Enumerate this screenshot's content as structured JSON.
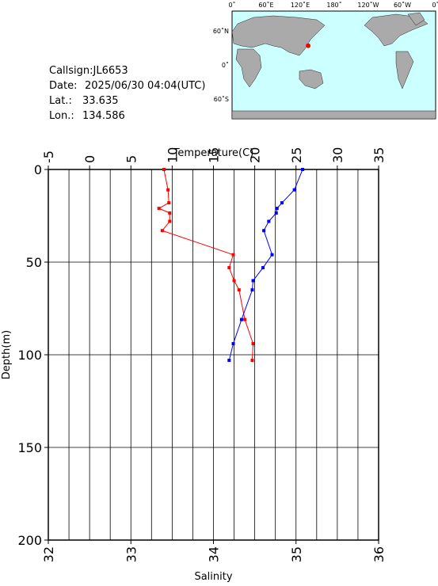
{
  "info": {
    "callsign": "Callsign:JL6653",
    "date_label": "Date:",
    "date": "2025/06/30 04:04(UTC)",
    "lat_label": "Lat.:",
    "lat": 33.635,
    "lon_label": "Lon.:",
    "lon": 134.586
  },
  "map": {
    "xlabels": [
      "0˚",
      "60˚E",
      "120˚E",
      "180˚",
      "120˚W",
      "60˚W",
      "0˚"
    ],
    "ylabels": [
      "60˚N",
      "0˚",
      "60˚S"
    ]
  },
  "chart_data": {
    "type": "line",
    "x_label": "Temperature(C)",
    "x2_label": "Salinity",
    "y_label": "Depth(m)",
    "xlim": [
      -5,
      35
    ],
    "xticks": [
      -5,
      0,
      5,
      10,
      15,
      20,
      25,
      30,
      35
    ],
    "xgrid": [
      -2.5,
      2.5,
      7.5,
      12.5,
      17.5,
      22.5,
      27.5,
      32.5
    ],
    "x2lim": [
      32,
      36
    ],
    "x2ticks": [
      32,
      33,
      34,
      35,
      36
    ],
    "ylim": [
      0,
      200
    ],
    "yticks": [
      0,
      50,
      100,
      150,
      200
    ],
    "y_inverted": true,
    "grid": true,
    "depth": [
      0,
      11,
      18,
      21,
      23.5,
      28,
      33,
      46,
      53,
      60,
      65,
      81,
      94,
      103
    ],
    "series": [
      {
        "name": "Temperature",
        "color": "#ff0000",
        "axis": "x",
        "values": [
          9.0,
          9.5,
          9.6,
          8.4,
          9.7,
          9.7,
          8.8,
          17.4,
          16.9,
          17.5,
          18.1,
          18.8,
          19.8,
          19.7
        ]
      },
      {
        "name": "Salinity",
        "color": "#0000ff",
        "axis": "x2",
        "values": [
          35.08,
          34.98,
          34.83,
          34.77,
          34.76,
          34.67,
          34.61,
          34.71,
          34.6,
          34.48,
          34.47,
          34.34,
          34.24,
          34.19
        ]
      }
    ]
  }
}
